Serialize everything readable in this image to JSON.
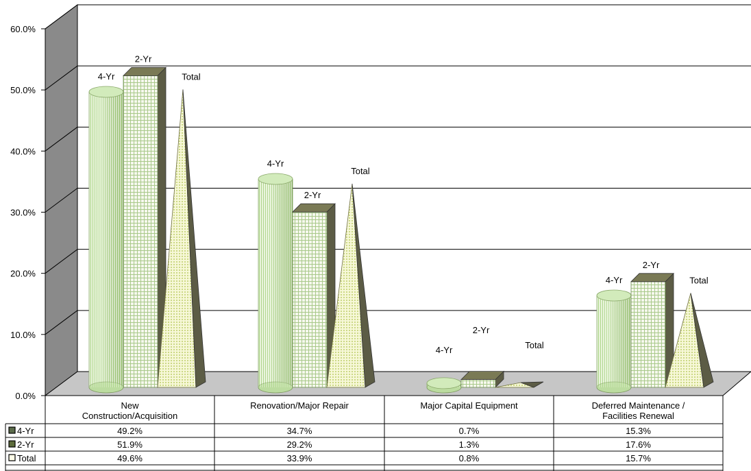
{
  "chart_data": {
    "type": "bar",
    "categories": [
      [
        "New",
        "Construction/Acquisition"
      ],
      [
        "Renovation/Major Repair"
      ],
      [
        "Major Capital Equipment"
      ],
      [
        "Deferred Maintenance /",
        "Facilities Renewal"
      ]
    ],
    "series": [
      {
        "name": "4-Yr",
        "shape": "cylinder",
        "values": [
          49.2,
          34.7,
          0.7,
          15.3
        ],
        "value_labels": [
          "49.2%",
          "34.7%",
          "0.7%",
          "15.3%"
        ]
      },
      {
        "name": "2-Yr",
        "shape": "box",
        "values": [
          51.9,
          29.2,
          1.3,
          17.6
        ],
        "value_labels": [
          "51.9%",
          "29.2%",
          "1.3%",
          "17.6%"
        ]
      },
      {
        "name": "Total",
        "shape": "pyramid",
        "values": [
          49.6,
          33.9,
          0.8,
          15.7
        ],
        "value_labels": [
          "49.6%",
          "33.9%",
          "0.8%",
          "15.7%"
        ]
      }
    ],
    "y_ticks": [
      "0.0%",
      "10.0%",
      "20.0%",
      "30.0%",
      "40.0%",
      "50.0%",
      "60.0%"
    ],
    "ylim": [
      0,
      60
    ],
    "grid": true,
    "data_table": true,
    "perspective": "3d",
    "colors": {
      "cylinder": "#d9eec4",
      "box": "#eef3e4",
      "pyramid": "#f3f6cf",
      "wall": "#808080",
      "floor": "#c8c8c8",
      "dark": "#5c5c45"
    }
  }
}
